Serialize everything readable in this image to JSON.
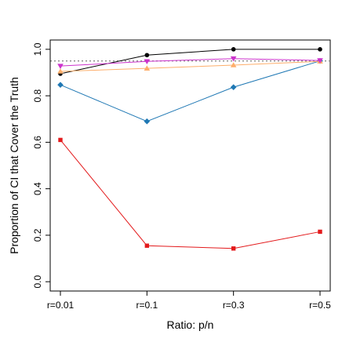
{
  "chart_data": {
    "type": "line",
    "title": "",
    "xlabel": "Ratio: p/n",
    "ylabel": "Proportion of CI that Cover the Truth",
    "categories": [
      "r=0.01",
      "r=0.1",
      "r=0.3",
      "r=0.5"
    ],
    "ylim": [
      -0.04,
      1.04
    ],
    "yticks": [
      "0.0",
      "0.2",
      "0.4",
      "0.6",
      "0.8",
      "1.0"
    ],
    "grid": false,
    "legend": "none",
    "reference_line": {
      "y": 0.95,
      "style": "dotted",
      "color": "#888888"
    },
    "series": [
      {
        "values": [
          0.895,
          0.975,
          1.0,
          1.0
        ],
        "color": "#000000",
        "marker": "circle"
      },
      {
        "values": [
          0.61,
          0.155,
          0.143,
          0.215
        ],
        "color": "#e31a1c",
        "marker": "square"
      },
      {
        "values": [
          0.847,
          0.69,
          0.837,
          0.95
        ],
        "color": "#1f78b4",
        "marker": "diamond"
      },
      {
        "values": [
          0.905,
          0.918,
          0.932,
          0.948
        ],
        "color": "#fdae6b",
        "marker": "triangle-up"
      },
      {
        "values": [
          0.928,
          0.948,
          0.96,
          0.952
        ],
        "color": "#cc33cc",
        "marker": "triangle-down"
      }
    ]
  }
}
